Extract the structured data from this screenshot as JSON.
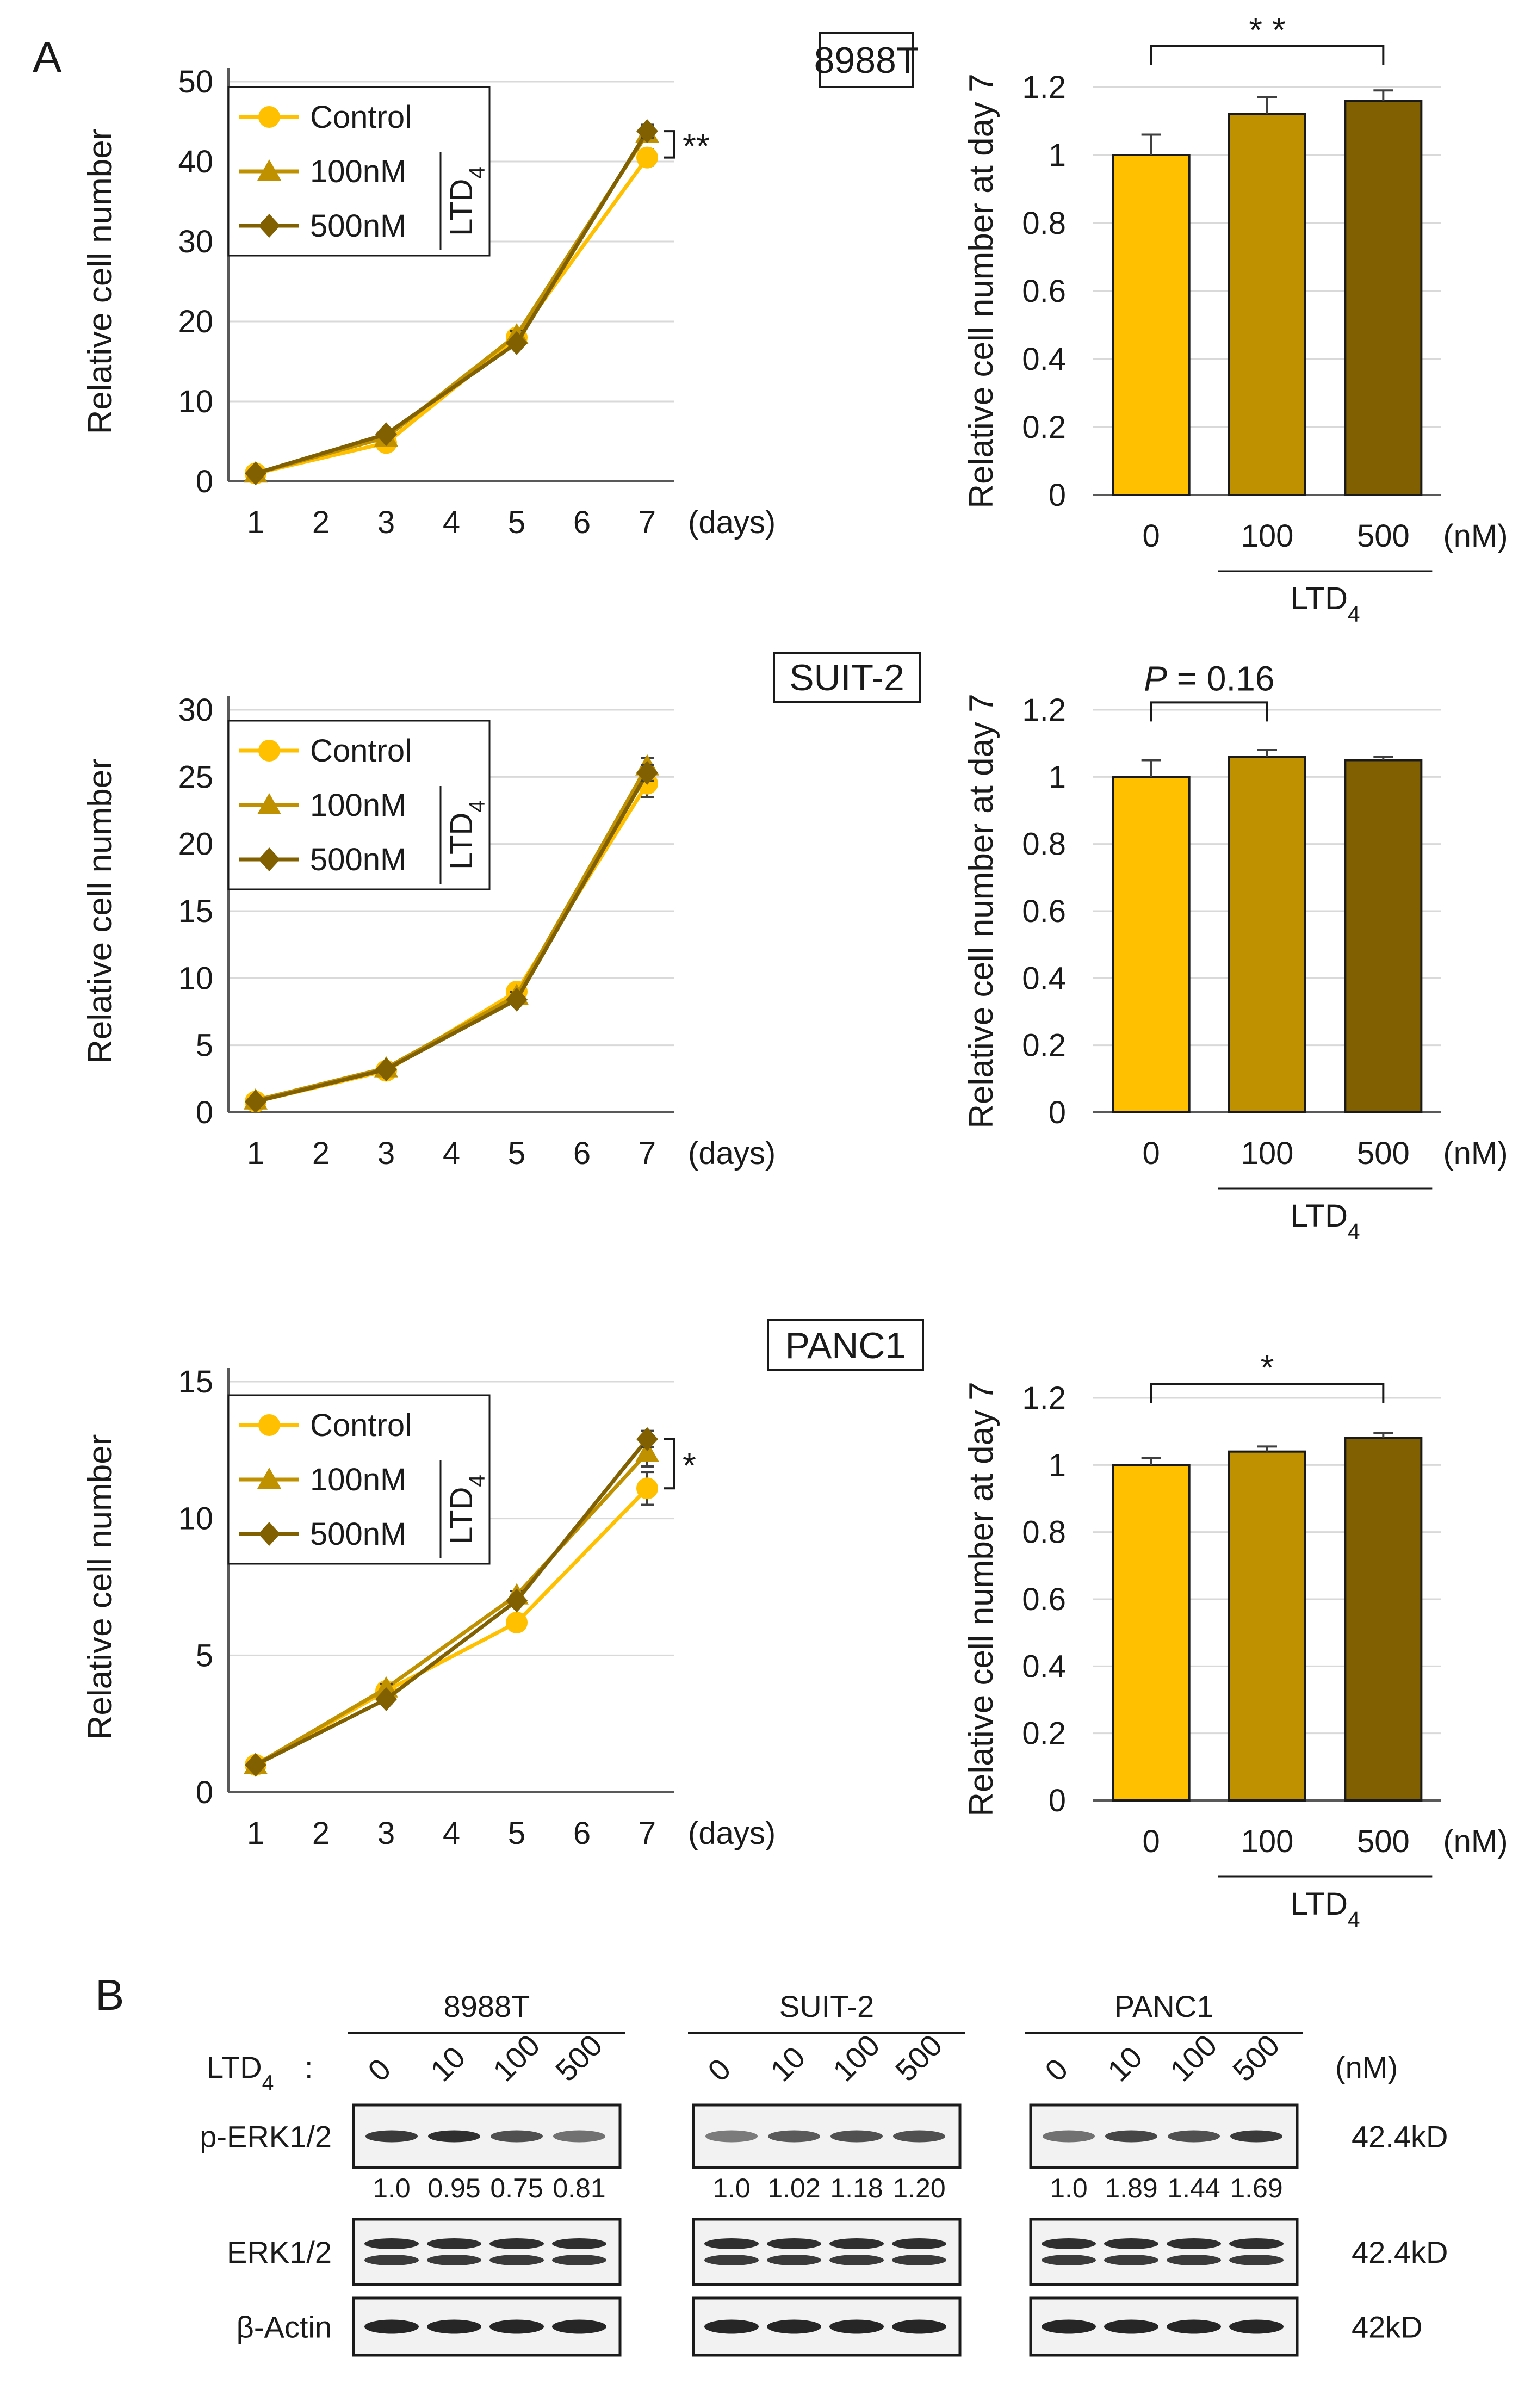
{
  "panel_labels": {
    "a": "A",
    "b": "B"
  },
  "colors": {
    "control": "#FFC000",
    "mid": "#BF9000",
    "dark": "#806000",
    "band": "#1a1a1a"
  },
  "chart_data": [
    {
      "id": "line-8988T",
      "type": "line",
      "cell_line": "8988T",
      "title": "",
      "xlabel": "(days)",
      "ylabel": "Relative  cell number",
      "x": [
        1,
        3,
        5,
        7
      ],
      "x_ticks": [
        "1",
        "2",
        "3",
        "4",
        "5",
        "6",
        "7"
      ],
      "ylim": [
        0,
        50
      ],
      "y_ticks": [
        "0",
        "10",
        "20",
        "30",
        "40",
        "50"
      ],
      "series": [
        {
          "name": "Control",
          "values": [
            1,
            4.8,
            18,
            40.5
          ],
          "err": [
            0.3,
            0.3,
            0.5,
            1
          ]
        },
        {
          "name": "100nM",
          "values": [
            1,
            5.5,
            18.3,
            43.5
          ],
          "err": [
            0.3,
            0.3,
            0.5,
            0.8
          ]
        },
        {
          "name": "500nM",
          "values": [
            1,
            5.9,
            17.3,
            43.8
          ],
          "err": [
            0.3,
            0.3,
            0.5,
            0.8
          ]
        }
      ],
      "legend_group": "LTD",
      "legend_sub": "4",
      "significance": "**"
    },
    {
      "id": "bar-8988T",
      "type": "bar",
      "cell_line": "8988T",
      "ylabel": "Relative  cell number at day 7",
      "categories": [
        "0",
        "100",
        "500"
      ],
      "values": [
        1.0,
        1.12,
        1.16
      ],
      "err": [
        0.06,
        0.05,
        0.03
      ],
      "ylim": [
        0,
        1.2
      ],
      "y_ticks": [
        "0",
        "0.2",
        "0.4",
        "0.6",
        "0.8",
        "1",
        "1.2"
      ],
      "unit": "(nM)",
      "group": "LTD",
      "group_sub": "4",
      "significance": "* *",
      "comparison": [
        "0",
        "500"
      ]
    },
    {
      "id": "line-SUIT2",
      "type": "line",
      "cell_line": "SUIT-2",
      "xlabel": "(days)",
      "ylabel": "Relative  cell number",
      "x": [
        1,
        3,
        5,
        7
      ],
      "x_ticks": [
        "1",
        "2",
        "3",
        "4",
        "5",
        "6",
        "7"
      ],
      "ylim": [
        0,
        30
      ],
      "y_ticks": [
        "0",
        "5",
        "10",
        "15",
        "20",
        "25",
        "30"
      ],
      "series": [
        {
          "name": "Control",
          "values": [
            0.8,
            3.1,
            9,
            24.5
          ],
          "err": [
            0.2,
            0.2,
            0.3,
            1
          ]
        },
        {
          "name": "100nM",
          "values": [
            0.9,
            3.3,
            8.7,
            25.8
          ],
          "err": [
            0.2,
            0.2,
            0.3,
            0.6
          ]
        },
        {
          "name": "500nM",
          "values": [
            0.8,
            3.2,
            8.4,
            25.3
          ],
          "err": [
            0.2,
            0.2,
            0.3,
            0.6
          ]
        }
      ],
      "legend_group": "LTD",
      "legend_sub": "4"
    },
    {
      "id": "bar-SUIT2",
      "type": "bar",
      "cell_line": "SUIT-2",
      "ylabel": "Relative  cell number at day 7",
      "categories": [
        "0",
        "100",
        "500"
      ],
      "values": [
        1.0,
        1.06,
        1.05
      ],
      "err": [
        0.05,
        0.02,
        0.01
      ],
      "ylim": [
        0,
        1.2
      ],
      "y_ticks": [
        "0",
        "0.2",
        "0.4",
        "0.6",
        "0.8",
        "1",
        "1.2"
      ],
      "unit": "(nM)",
      "group": "LTD",
      "group_sub": "4",
      "significance_p": "P",
      "significance_rest": " = 0.16",
      "comparison": [
        "0",
        "100"
      ]
    },
    {
      "id": "line-PANC1",
      "type": "line",
      "cell_line": "PANC1",
      "xlabel": "(days)",
      "ylabel": "Relative  cell number",
      "x": [
        1,
        3,
        5,
        7
      ],
      "x_ticks": [
        "1",
        "2",
        "3",
        "4",
        "5",
        "6",
        "7"
      ],
      "ylim": [
        0,
        15
      ],
      "y_ticks": [
        "0",
        "5",
        "10",
        "15"
      ],
      "series": [
        {
          "name": "Control",
          "values": [
            1,
            3.7,
            6.2,
            11.1
          ],
          "err": [
            0.1,
            0.15,
            0.15,
            0.6
          ]
        },
        {
          "name": "100nM",
          "values": [
            1,
            3.8,
            7.2,
            12.4
          ],
          "err": [
            0.1,
            0.15,
            0.15,
            0.5
          ]
        },
        {
          "name": "500nM",
          "values": [
            1,
            3.4,
            7,
            12.9
          ],
          "err": [
            0.1,
            0.15,
            0.15,
            0.3
          ]
        }
      ],
      "legend_group": "LTD",
      "legend_sub": "4",
      "significance": "*"
    },
    {
      "id": "bar-PANC1",
      "type": "bar",
      "cell_line": "PANC1",
      "ylabel": "Relative  cell number at day 7",
      "categories": [
        "0",
        "100",
        "500"
      ],
      "values": [
        1.0,
        1.04,
        1.08
      ],
      "err": [
        0.02,
        0.015,
        0.015
      ],
      "ylim": [
        0,
        1.2
      ],
      "y_ticks": [
        "0",
        "0.2",
        "0.4",
        "0.6",
        "0.8",
        "1",
        "1.2"
      ],
      "unit": "(nM)",
      "group": "LTD",
      "group_sub": "4",
      "significance": "*",
      "comparison": [
        "0",
        "500"
      ]
    }
  ],
  "western": {
    "treatment_label": "LTD",
    "treatment_sub": "4",
    "treatment_colon": " :",
    "unit": "(nM)",
    "doses": [
      "0",
      "10",
      "100",
      "500"
    ],
    "rows": [
      {
        "name": "p-ERK1/2",
        "size": "42.4kD"
      },
      {
        "name": "ERK1/2",
        "size": "42.4kD"
      },
      {
        "name": "β-Actin",
        "size": "42kD"
      }
    ],
    "blocks": [
      {
        "cell_line": "8988T",
        "quant": [
          "1.0",
          "0.95",
          "0.75",
          "0.81"
        ],
        "perk": [
          0.85,
          0.9,
          0.75,
          0.6
        ]
      },
      {
        "cell_line": "SUIT-2",
        "quant": [
          "1.0",
          "1.02",
          "1.18",
          "1.20"
        ],
        "perk": [
          0.55,
          0.7,
          0.75,
          0.75
        ]
      },
      {
        "cell_line": "PANC1",
        "quant": [
          "1.0",
          "1.89",
          "1.44",
          "1.69"
        ],
        "perk": [
          0.6,
          0.8,
          0.75,
          0.85
        ]
      }
    ]
  }
}
